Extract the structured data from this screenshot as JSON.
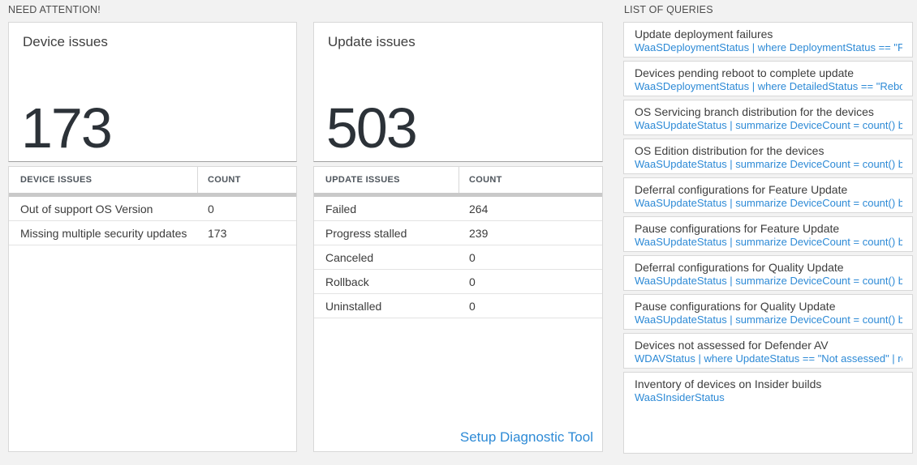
{
  "colors": {
    "background": "#f2f2f2",
    "tile_border": "#d8d8d8",
    "accent_blue": "#2d8ad6",
    "big_number_color": "#2c3238",
    "thick_bar_gray": "#c9c9c9"
  },
  "sections": {
    "need_attention": "NEED ATTENTION!",
    "list_of_queries": "LIST OF QUERIES"
  },
  "device_card": {
    "title": "Device issues",
    "big_number": "173",
    "table": {
      "headers": [
        "DEVICE ISSUES",
        "COUNT"
      ],
      "rows": [
        {
          "label": "Out of support OS Version",
          "count": "0"
        },
        {
          "label": "Missing multiple security updates",
          "count": "173"
        }
      ]
    }
  },
  "update_card": {
    "title": "Update issues",
    "big_number": "503",
    "table": {
      "headers": [
        "UPDATE ISSUES",
        "COUNT"
      ],
      "rows": [
        {
          "label": "Failed",
          "count": "264"
        },
        {
          "label": "Progress stalled",
          "count": "239"
        },
        {
          "label": "Canceled",
          "count": "0"
        },
        {
          "label": "Rollback",
          "count": "0"
        },
        {
          "label": "Uninstalled",
          "count": "0"
        }
      ]
    },
    "link_label": "Setup Diagnostic Tool"
  },
  "queries": [
    {
      "title": "Update deployment failures",
      "query": "WaaSDeploymentStatus | where DeploymentStatus == \"Failed\" |..."
    },
    {
      "title": "Devices pending reboot to complete update",
      "query": "WaaSDeploymentStatus | where DetailedStatus == \"Reboot pend..."
    },
    {
      "title": "OS Servicing branch distribution for the devices",
      "query": "WaaSUpdateStatus | summarize DeviceCount = count() by OSSer..."
    },
    {
      "title": "OS Edition distribution for the devices",
      "query": "WaaSUpdateStatus | summarize DeviceCount = count() by OSEdit..."
    },
    {
      "title": "Deferral configurations for Feature Update",
      "query": "WaaSUpdateStatus | summarize DeviceCount = count() by Featur..."
    },
    {
      "title": "Pause configurations for Feature Update",
      "query": "WaaSUpdateStatus | summarize DeviceCount = count() by Featur..."
    },
    {
      "title": "Deferral configurations for Quality Update",
      "query": "WaaSUpdateStatus | summarize DeviceCount = count() by Qualit..."
    },
    {
      "title": "Pause configurations for Quality Update",
      "query": "WaaSUpdateStatus | summarize DeviceCount = count() by Qualit..."
    },
    {
      "title": "Devices not assessed for Defender AV",
      "query": "WDAVStatus | where UpdateStatus == \"Not assessed\" | render ta..."
    },
    {
      "title": "Inventory of devices on Insider builds",
      "query": "WaaSInsiderStatus"
    }
  ]
}
